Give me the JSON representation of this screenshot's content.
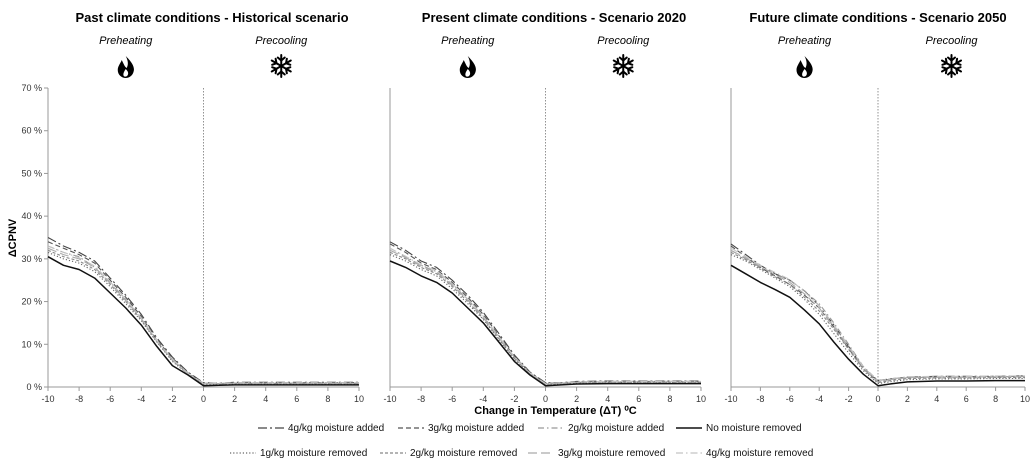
{
  "ylabel": "ΔCPNV",
  "xlabel": "Change in Temperature (ΔT) ⁰C",
  "y_ticks": [
    "0 %",
    "10 %",
    "20 %",
    "30 %",
    "40 %",
    "50 %",
    "60 %",
    "70 %"
  ],
  "x_ticks": [
    "-10",
    "-8",
    "-6",
    "-4",
    "-2",
    "0",
    "2",
    "4",
    "6",
    "8",
    "10"
  ],
  "preheating_label": "Preheating",
  "precooling_label": "Precooling",
  "icons": {
    "preheating": "flame-icon",
    "precooling": "snowflake-icon"
  },
  "legend": [
    {
      "label": "4g/kg moisture added",
      "style": "longdashdot",
      "color": "#444444"
    },
    {
      "label": "3g/kg moisture added",
      "style": "dash",
      "color": "#555555"
    },
    {
      "label": "2g/kg moisture added",
      "style": "dashdot",
      "color": "#999999"
    },
    {
      "label": "No moisture removed",
      "style": "solid",
      "color": "#111111"
    },
    {
      "label": "1g/kg moisture removed",
      "style": "dot",
      "color": "#666666"
    },
    {
      "label": "2g/kg moisture removed",
      "style": "shortdash",
      "color": "#888888"
    },
    {
      "label": "3g/kg moisture removed",
      "style": "longdash",
      "color": "#aaaaaa"
    },
    {
      "label": "4g/kg moisture removed",
      "style": "dashdotlight",
      "color": "#c4c4c4"
    }
  ],
  "chart_data": [
    {
      "type": "line",
      "title": "Past climate conditions - Historical scenario",
      "xlabel": "",
      "ylabel": "ΔCPNV",
      "x": [
        -10,
        -9,
        -8,
        -7,
        -6,
        -5,
        -4,
        -3,
        -2,
        -1,
        0,
        1,
        2,
        4,
        6,
        8,
        10
      ],
      "xlim": [
        -10,
        10
      ],
      "ylim": [
        0,
        70
      ],
      "series": [
        {
          "name": "4g/kg moisture added",
          "values": [
            35,
            33,
            31.5,
            29.5,
            25.5,
            21.5,
            17,
            11.5,
            7,
            3.5,
            1,
            0.9,
            1.1,
            1.1,
            1.1,
            1.1,
            1.1
          ]
        },
        {
          "name": "3g/kg moisture added",
          "values": [
            34,
            32.5,
            31,
            29,
            25,
            21,
            16.5,
            11,
            6.8,
            3.3,
            0.9,
            0.8,
            1,
            1,
            1,
            1,
            1
          ]
        },
        {
          "name": "2g/kg moisture added",
          "values": [
            33,
            31.5,
            30.5,
            28,
            24.5,
            20.5,
            16,
            10.8,
            6.5,
            3.1,
            0.8,
            0.8,
            0.9,
            0.9,
            0.9,
            0.9,
            0.9
          ]
        },
        {
          "name": "No moisture removed",
          "values": [
            30.5,
            28.5,
            27.5,
            25.5,
            22,
            18.5,
            14.5,
            9.5,
            5,
            2.8,
            0.3,
            0.4,
            0.5,
            0.5,
            0.5,
            0.5,
            0.5
          ]
        },
        {
          "name": "1g/kg moisture removed",
          "values": [
            31.5,
            30,
            29,
            27,
            23.5,
            19.5,
            15.5,
            10.5,
            6,
            3,
            0.6,
            0.6,
            0.7,
            0.7,
            0.7,
            0.7,
            0.7
          ]
        },
        {
          "name": "2g/kg moisture removed",
          "values": [
            32,
            30.5,
            29.5,
            27.5,
            24,
            20,
            15.8,
            10.6,
            6.2,
            3,
            0.7,
            0.7,
            0.8,
            0.8,
            0.8,
            0.8,
            0.8
          ]
        },
        {
          "name": "3g/kg moisture removed",
          "values": [
            32.5,
            31,
            30,
            28,
            24.3,
            20.2,
            16,
            10.7,
            6.3,
            3.1,
            0.8,
            0.8,
            0.9,
            0.9,
            0.9,
            0.9,
            0.9
          ]
        },
        {
          "name": "4g/kg moisture removed",
          "values": [
            33,
            31.5,
            30.3,
            28.3,
            24.6,
            20.5,
            16.2,
            10.9,
            6.5,
            3.2,
            0.9,
            0.9,
            1,
            1,
            1,
            1,
            1
          ]
        }
      ]
    },
    {
      "type": "line",
      "title": "Present climate conditions - Scenario 2020",
      "xlabel": "Change in Temperature (ΔT) ⁰C",
      "ylabel": "",
      "x": [
        -10,
        -9,
        -8,
        -7,
        -6,
        -5,
        -4,
        -3,
        -2,
        -1,
        0,
        1,
        2,
        4,
        6,
        8,
        10
      ],
      "xlim": [
        -10,
        10
      ],
      "ylim": [
        0,
        70
      ],
      "series": [
        {
          "name": "4g/kg moisture added",
          "values": [
            34,
            32,
            29.5,
            28,
            25,
            21.5,
            17.5,
            12.5,
            7.5,
            3.5,
            1,
            1,
            1.3,
            1.4,
            1.4,
            1.4,
            1.4
          ]
        },
        {
          "name": "3g/kg moisture added",
          "values": [
            33.5,
            31.5,
            29,
            27.5,
            24.5,
            21,
            17,
            12,
            7.2,
            3.3,
            0.9,
            0.9,
            1.2,
            1.3,
            1.3,
            1.3,
            1.3
          ]
        },
        {
          "name": "2g/kg moisture added",
          "values": [
            32.5,
            30.5,
            28.5,
            27,
            24,
            20.5,
            16.5,
            11.7,
            7,
            3.2,
            0.8,
            0.9,
            1.1,
            1.2,
            1.2,
            1.2,
            1.2
          ]
        },
        {
          "name": "No moisture removed",
          "values": [
            29.5,
            28,
            26,
            24.5,
            22,
            18.5,
            15,
            10.5,
            6,
            2.8,
            0.3,
            0.5,
            0.7,
            0.8,
            0.8,
            0.8,
            0.8
          ]
        },
        {
          "name": "1g/kg moisture removed",
          "values": [
            31,
            29.5,
            27.5,
            26,
            23,
            19.5,
            15.8,
            11,
            6.5,
            3,
            0.5,
            0.7,
            0.9,
            1,
            1,
            1,
            1
          ]
        },
        {
          "name": "2g/kg moisture removed",
          "values": [
            31.5,
            30,
            28,
            26.5,
            23.5,
            20,
            16,
            11.3,
            6.7,
            3.1,
            0.6,
            0.8,
            1,
            1.1,
            1.1,
            1.1,
            1.1
          ]
        },
        {
          "name": "3g/kg moisture removed",
          "values": [
            32,
            30.3,
            28.3,
            26.8,
            23.8,
            20.3,
            16.3,
            11.5,
            6.9,
            3.2,
            0.7,
            0.9,
            1.1,
            1.2,
            1.2,
            1.2,
            1.2
          ]
        },
        {
          "name": "4g/kg moisture removed",
          "values": [
            32.5,
            30.6,
            28.6,
            27.2,
            24.2,
            20.6,
            16.6,
            11.8,
            7.1,
            3.3,
            0.8,
            1,
            1.2,
            1.3,
            1.3,
            1.3,
            1.3
          ]
        }
      ]
    },
    {
      "type": "line",
      "title": "Future climate conditions - Scenario 2050",
      "xlabel": "",
      "ylabel": "",
      "x": [
        -10,
        -9,
        -8,
        -7,
        -6,
        -5,
        -4,
        -3,
        -2,
        -1,
        0,
        1,
        2,
        4,
        6,
        8,
        10
      ],
      "xlim": [
        -10,
        10
      ],
      "ylim": [
        0,
        70
      ],
      "series": [
        {
          "name": "4g/kg moisture added",
          "values": [
            33.5,
            31,
            28.5,
            26.5,
            25,
            22.5,
            19,
            14.5,
            9.5,
            4.5,
            1.5,
            2,
            2.3,
            2.5,
            2.5,
            2.5,
            2.6
          ]
        },
        {
          "name": "3g/kg moisture added",
          "values": [
            33,
            30.5,
            28,
            26,
            24,
            21.5,
            18.5,
            14,
            9,
            4.3,
            1.3,
            1.9,
            2.2,
            2.4,
            2.4,
            2.4,
            2.5
          ]
        },
        {
          "name": "2g/kg moisture added",
          "values": [
            32,
            30,
            28,
            26.5,
            25,
            22.5,
            19.5,
            15,
            10,
            4.8,
            1.5,
            2,
            2.2,
            2.3,
            2.3,
            2.3,
            2.4
          ]
        },
        {
          "name": "No moisture removed",
          "values": [
            28.5,
            26.5,
            24.5,
            22.8,
            21,
            18,
            14.8,
            10.5,
            6.5,
            3,
            0.3,
            0.8,
            1.2,
            1.4,
            1.4,
            1.5,
            1.5
          ]
        },
        {
          "name": "1g/kg moisture removed",
          "values": [
            31,
            29.5,
            27.5,
            25.5,
            23.5,
            20.5,
            17,
            12.5,
            8,
            3.8,
            0.8,
            1.3,
            1.7,
            1.9,
            1.9,
            2,
            2
          ]
        },
        {
          "name": "2g/kg moisture removed",
          "values": [
            31.5,
            29.8,
            27.8,
            25.8,
            24,
            21,
            17.8,
            13.5,
            8.8,
            4.2,
            1,
            1.6,
            2,
            2.1,
            2.1,
            2.2,
            2.2
          ]
        },
        {
          "name": "3g/kg moisture removed",
          "values": [
            32,
            30.2,
            28.2,
            26.3,
            24.5,
            21.8,
            18.5,
            14,
            9.3,
            4.5,
            1.2,
            1.8,
            2.2,
            2.3,
            2.3,
            2.4,
            2.4
          ]
        },
        {
          "name": "4g/kg moisture removed",
          "values": [
            32.5,
            30.5,
            28.5,
            26.8,
            25.2,
            22.3,
            19,
            14.5,
            9.7,
            4.7,
            1.4,
            2,
            2.4,
            2.5,
            2.5,
            2.6,
            2.6
          ]
        }
      ]
    }
  ]
}
